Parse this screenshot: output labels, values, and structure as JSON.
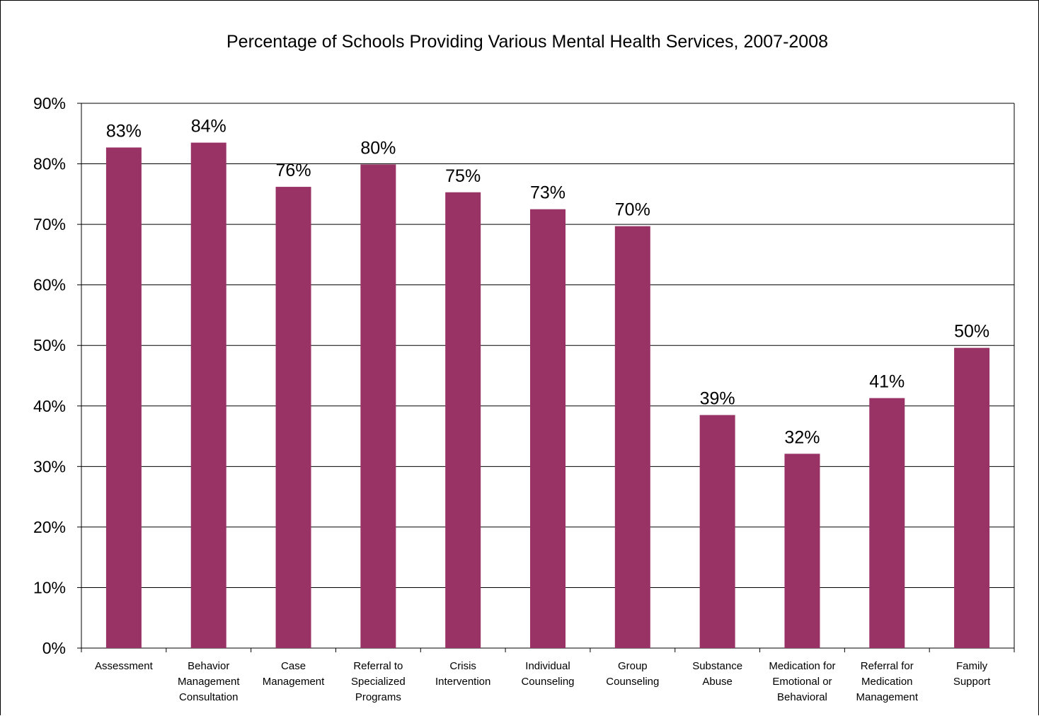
{
  "chart_data": {
    "type": "bar",
    "title": "Percentage of Schools Providing Various Mental Health Services, 2007-2008",
    "xlabel": "",
    "ylabel": "",
    "ylim": [
      0,
      90
    ],
    "grid": true,
    "legend": "none",
    "bar_color": "#993366",
    "y_ticks": [
      "0%",
      "10%",
      "20%",
      "30%",
      "40%",
      "50%",
      "60%",
      "70%",
      "80%",
      "90%"
    ],
    "categories": [
      [
        "Assessment"
      ],
      [
        "Behavior",
        "Management",
        "Consultation"
      ],
      [
        "Case",
        "Management"
      ],
      [
        "Referral to",
        "Specialized",
        "Programs"
      ],
      [
        "Crisis",
        "Intervention"
      ],
      [
        "Individual",
        "Counseling"
      ],
      [
        "Group",
        "Counseling"
      ],
      [
        "Substance",
        "Abuse"
      ],
      [
        "Medication for",
        "Emotional or",
        "Behavioral"
      ],
      [
        "Referral for",
        "Medication",
        "Management"
      ],
      [
        "Family",
        "Support"
      ]
    ],
    "values": [
      82.7,
      83.5,
      76.2,
      79.9,
      75.3,
      72.5,
      69.7,
      38.5,
      32.1,
      41.3,
      49.6
    ],
    "data_labels": [
      "83%",
      "84%",
      "76%",
      "80%",
      "75%",
      "73%",
      "70%",
      "39%",
      "32%",
      "41%",
      "50%"
    ]
  }
}
